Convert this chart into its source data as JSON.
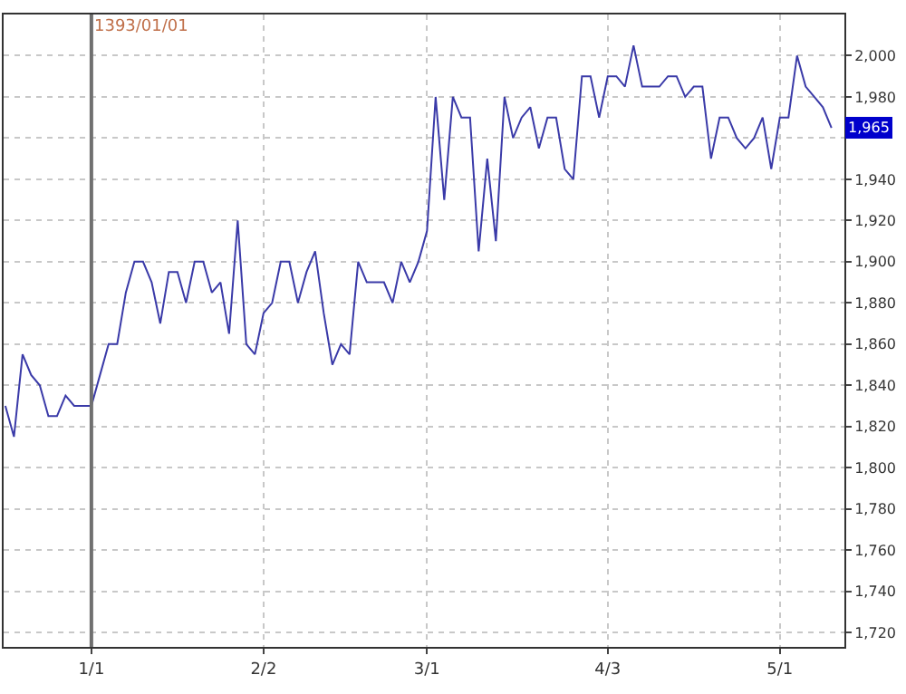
{
  "chart_data": {
    "type": "line",
    "categories": [
      null,
      null,
      null,
      null,
      null,
      null,
      null,
      null,
      null,
      null,
      "1/1",
      null,
      null,
      null,
      null,
      null,
      null,
      null,
      null,
      null,
      null,
      null,
      null,
      null,
      null,
      null,
      null,
      null,
      null,
      null,
      "2/2",
      null,
      null,
      null,
      null,
      null,
      null,
      null,
      null,
      null,
      null,
      null,
      null,
      null,
      null,
      null,
      null,
      null,
      null,
      "3/1",
      null,
      null,
      null,
      null,
      null,
      null,
      null,
      null,
      null,
      null,
      null,
      null,
      null,
      null,
      null,
      null,
      null,
      null,
      null,
      null,
      "4/3",
      null,
      null,
      null,
      null,
      null,
      null,
      null,
      null,
      null,
      null,
      null,
      null,
      null,
      null,
      null,
      null,
      null,
      null,
      null,
      "5/1",
      null,
      null,
      null,
      null,
      null,
      null
    ],
    "series": [
      {
        "color": "#3a3aa8",
        "values": [
          1830,
          1815,
          1855,
          1845,
          1840,
          1825,
          1825,
          1835,
          1830,
          1830,
          1830,
          1845,
          1860,
          1860,
          1885,
          1900,
          1900,
          1890,
          1870,
          1895,
          1895,
          1880,
          1900,
          1900,
          1885,
          1890,
          1865,
          1920,
          1860,
          1855,
          1875,
          1880,
          1900,
          1900,
          1880,
          1895,
          1905,
          1875,
          1850,
          1860,
          1855,
          1900,
          1890,
          1890,
          1890,
          1880,
          1900,
          1890,
          1900,
          1915,
          1980,
          1930,
          1980,
          1970,
          1970,
          1905,
          1950,
          1910,
          1980,
          1960,
          1970,
          1975,
          1955,
          1970,
          1970,
          1945,
          1940,
          1990,
          1990,
          1970,
          1990,
          1990,
          1985,
          2005,
          1985,
          1985,
          1985,
          1990,
          1990,
          1980,
          1985,
          1985,
          1950,
          1970,
          1970,
          1960,
          1955,
          1960,
          1970,
          1945,
          1970,
          1970,
          2000,
          1985,
          1980,
          1975,
          1965
        ],
        "value_labels": [
          null,
          null,
          null,
          null,
          null,
          null,
          null,
          null,
          null,
          null,
          null,
          null,
          null,
          null,
          null,
          null,
          null,
          null,
          null,
          null,
          null,
          null,
          null,
          null,
          null,
          null,
          null,
          null,
          null,
          null,
          null,
          null,
          null,
          null,
          null,
          null,
          null,
          null,
          null,
          null,
          null,
          null,
          null,
          null,
          null,
          null,
          null,
          null,
          null,
          null,
          null,
          null,
          null,
          null,
          null,
          null,
          null,
          null,
          null,
          null,
          null,
          null,
          null,
          null,
          null,
          null,
          null,
          null,
          null,
          null,
          null,
          null,
          null,
          null,
          null,
          null,
          null,
          null,
          null,
          null,
          null,
          null,
          null,
          null,
          null,
          null,
          null,
          null,
          null,
          null,
          null,
          null,
          null,
          null,
          null,
          null,
          "1,965"
        ]
      }
    ],
    "ylim": [
      1713,
      2020
    ],
    "yticks": [
      {
        "value": 1720,
        "label": "1,720"
      },
      {
        "value": 1740,
        "label": "1,740"
      },
      {
        "value": 1760,
        "label": "1,760"
      },
      {
        "value": 1780,
        "label": "1,780"
      },
      {
        "value": 1800,
        "label": "1,800"
      },
      {
        "value": 1820,
        "label": "1,820"
      },
      {
        "value": 1840,
        "label": "1,840"
      },
      {
        "value": 1860,
        "label": "1,860"
      },
      {
        "value": 1880,
        "label": "1,880"
      },
      {
        "value": 1900,
        "label": "1,900"
      },
      {
        "value": 1920,
        "label": "1,920"
      },
      {
        "value": 1940,
        "label": "1,940"
      },
      {
        "value": 1960,
        "label": null
      },
      {
        "value": 1980,
        "label": "1,980"
      },
      {
        "value": 2000,
        "label": "2,000"
      }
    ],
    "ref_lines": [
      {
        "axis": "x",
        "value": "1/1",
        "label": "1393/01/01",
        "color": "#707070"
      }
    ],
    "grid": true,
    "legend": false,
    "marker": "none",
    "line_style": "solid"
  }
}
